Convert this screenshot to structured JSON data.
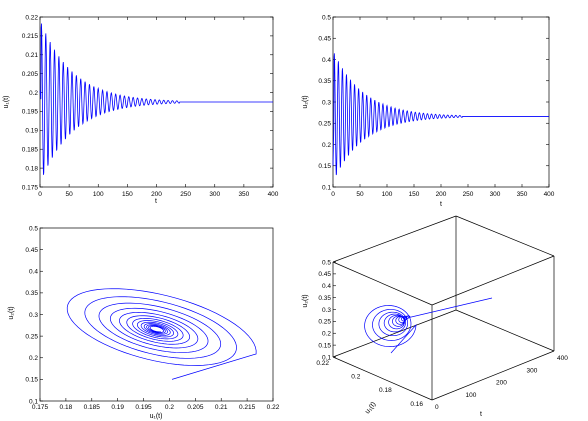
{
  "chart_data": [
    {
      "type": "line",
      "xlabel": "t",
      "ylabel": "u₁(t)",
      "xlim": [
        0,
        400
      ],
      "ylim": [
        0.175,
        0.22
      ],
      "xticks": [
        "0",
        "50",
        "100",
        "150",
        "200",
        "250",
        "300",
        "350",
        "400"
      ],
      "yticks": [
        "0.175",
        "0.18",
        "0.185",
        "0.19",
        "0.195",
        "0.2",
        "0.205",
        "0.21",
        "0.215",
        "0.22"
      ],
      "series": [
        {
          "equilibrium": 0.1975,
          "initial": 0.2005,
          "envelope_start": 0.021,
          "period": 7.5,
          "decay": 0.018,
          "settle_t": 240,
          "color": "#0000ff"
        }
      ]
    },
    {
      "type": "line",
      "xlabel": "t",
      "ylabel": "u₂(t)",
      "xlim": [
        0,
        400
      ],
      "ylim": [
        0.1,
        0.5
      ],
      "xticks": [
        "0",
        "50",
        "100",
        "150",
        "200",
        "250",
        "300",
        "350",
        "400"
      ],
      "yticks": [
        "0.1",
        "0.15",
        "0.2",
        "0.25",
        "0.3",
        "0.35",
        "0.4",
        "0.45",
        "0.5"
      ],
      "series": [
        {
          "equilibrium": 0.266,
          "initial": 0.15,
          "envelope_start": 0.15,
          "period": 7.5,
          "decay": 0.018,
          "settle_t": 240,
          "color": "#0000ff"
        }
      ]
    },
    {
      "type": "line",
      "xlabel": "u₁(t)",
      "ylabel": "u₂(t)",
      "xlim": [
        0.175,
        0.22
      ],
      "ylim": [
        0.1,
        0.5
      ],
      "xticks": [
        "0.175",
        "0.18",
        "0.185",
        "0.19",
        "0.195",
        "0.2",
        "0.205",
        "0.21",
        "0.215",
        "0.22"
      ],
      "yticks": [
        "0.1",
        "0.15",
        "0.2",
        "0.25",
        "0.3",
        "0.35",
        "0.4",
        "0.45",
        "0.5"
      ],
      "series": [
        {
          "center": [
            0.1975,
            0.266
          ],
          "start": [
            0.2005,
            0.15
          ],
          "color": "#0000ff"
        }
      ]
    },
    {
      "type": "line",
      "xlabel": "t",
      "ylabel": "u₂(t)",
      "zlabel": "u₁(t)",
      "xlim": [
        0,
        400
      ],
      "ylim": [
        0.16,
        0.22
      ],
      "zlim": [
        0.1,
        0.5
      ],
      "xticks": [
        "0",
        "100",
        "200",
        "300",
        "400"
      ],
      "u1ticks": [
        "0.22",
        "0.2",
        "0.18",
        "0.16"
      ],
      "zticks": [
        "0.1",
        "0.15",
        "0.2",
        "0.25",
        "0.3",
        "0.35",
        "0.4",
        "0.45",
        "0.5"
      ],
      "series": [
        {
          "color": "#0000ff"
        }
      ]
    }
  ]
}
